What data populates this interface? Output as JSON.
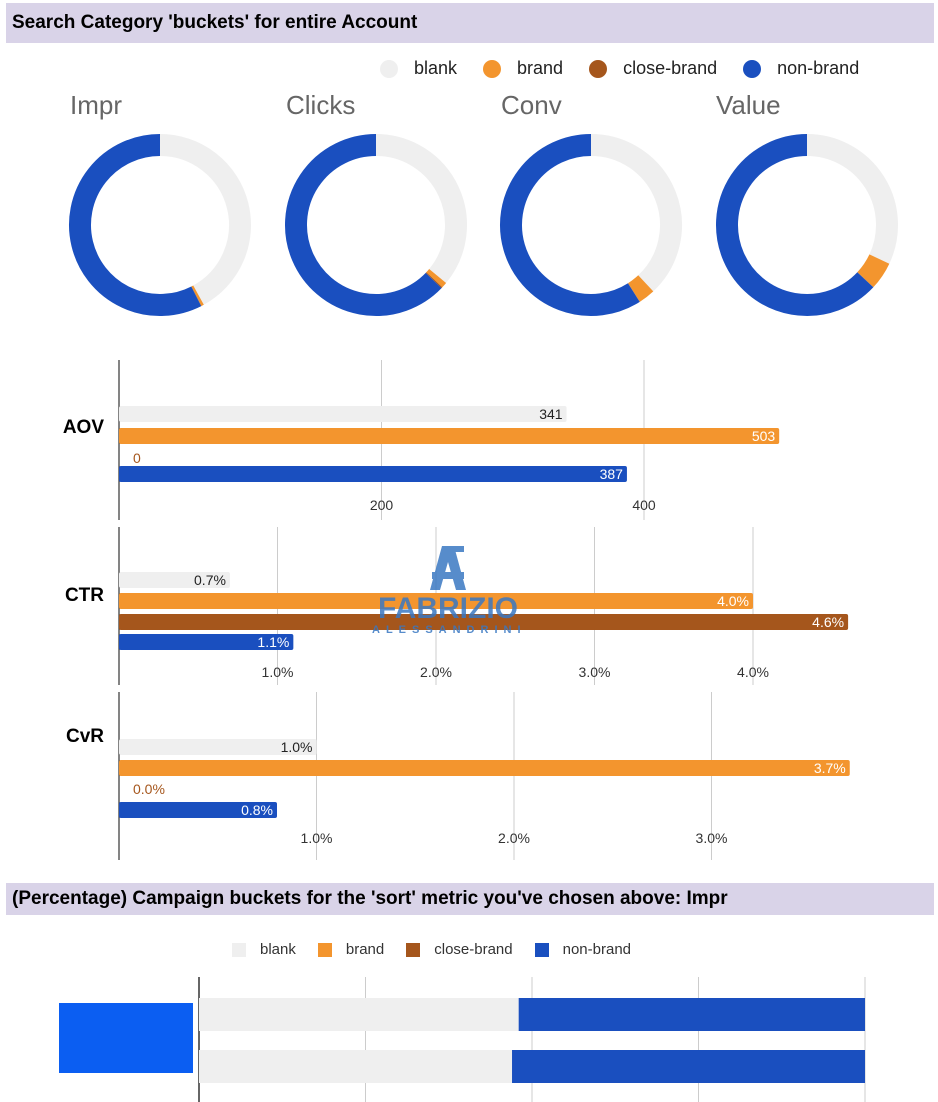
{
  "header1": "Search Category 'buckets' for entire Account",
  "header2": "(Percentage) Campaign buckets for the 'sort' metric you've chosen above: Impr",
  "colors": {
    "blank": "#efefef",
    "brand": "#f3952e",
    "close_brand": "#a5561c",
    "non_brand": "#1a4fbf",
    "header_bg": "#d9d3e8"
  },
  "legend": [
    "blank",
    "brand",
    "close-brand",
    "non-brand"
  ],
  "watermark": {
    "name": "FABRIZIO",
    "sub": "ALESSANDRINI"
  },
  "chart_data": [
    {
      "type": "pie",
      "title": "Impr",
      "labels": [
        "blank",
        "brand",
        "close-brand",
        "non-brand"
      ],
      "values": [
        0.42,
        0.005,
        0.0,
        0.575
      ]
    },
    {
      "type": "pie",
      "title": "Clicks",
      "labels": [
        "blank",
        "brand",
        "close-brand",
        "non-brand"
      ],
      "values": [
        0.36,
        0.01,
        0.002,
        0.628
      ]
    },
    {
      "type": "pie",
      "title": "Conv",
      "labels": [
        "blank",
        "brand",
        "close-brand",
        "non-brand"
      ],
      "values": [
        0.38,
        0.03,
        0.0,
        0.59
      ]
    },
    {
      "type": "pie",
      "title": "Value",
      "labels": [
        "blank",
        "brand",
        "close-brand",
        "non-brand"
      ],
      "values": [
        0.32,
        0.05,
        0.0,
        0.63
      ]
    },
    {
      "type": "bar",
      "orientation": "horizontal",
      "title": "AOV",
      "categories": [
        "blank",
        "brand",
        "close-brand",
        "non-brand"
      ],
      "values": [
        341,
        503,
        0,
        387
      ],
      "data_labels": [
        "341",
        "503",
        "0",
        "387"
      ],
      "xlim": [
        0,
        560
      ],
      "xticks": [
        200,
        400
      ],
      "xtick_labels": [
        "200",
        "400"
      ]
    },
    {
      "type": "bar",
      "orientation": "horizontal",
      "title": "CTR",
      "categories": [
        "blank",
        "brand",
        "close-brand",
        "non-brand"
      ],
      "values": [
        0.7,
        4.0,
        4.6,
        1.1
      ],
      "data_labels": [
        "0.7%",
        "4.0%",
        "4.6%",
        "1.1%"
      ],
      "xlim": [
        0,
        4.9
      ],
      "xticks": [
        1,
        2,
        3,
        4
      ],
      "xtick_labels": [
        "1.0%",
        "2.0%",
        "3.0%",
        "4.0%"
      ]
    },
    {
      "type": "bar",
      "orientation": "horizontal",
      "title": "CvR",
      "categories": [
        "blank",
        "brand",
        "close-brand",
        "non-brand"
      ],
      "values": [
        1.0,
        3.7,
        0.0,
        0.8
      ],
      "data_labels": [
        "1.0%",
        "3.7%",
        "0.0%",
        "0.8%"
      ],
      "xlim": [
        0,
        3.75
      ],
      "xticks": [
        1,
        2,
        3
      ],
      "xtick_labels": [
        "1.0%",
        "2.0%",
        "3.0%"
      ]
    },
    {
      "type": "bar",
      "orientation": "horizontal",
      "stacked": true,
      "percent": true,
      "categories": [
        "",
        ""
      ],
      "series": [
        {
          "name": "blank",
          "values": [
            48,
            47
          ]
        },
        {
          "name": "brand",
          "values": [
            0,
            0
          ]
        },
        {
          "name": "close-brand",
          "values": [
            0,
            0
          ]
        },
        {
          "name": "non-brand",
          "values": [
            52,
            53
          ]
        }
      ],
      "xlim": [
        0,
        100
      ]
    }
  ]
}
